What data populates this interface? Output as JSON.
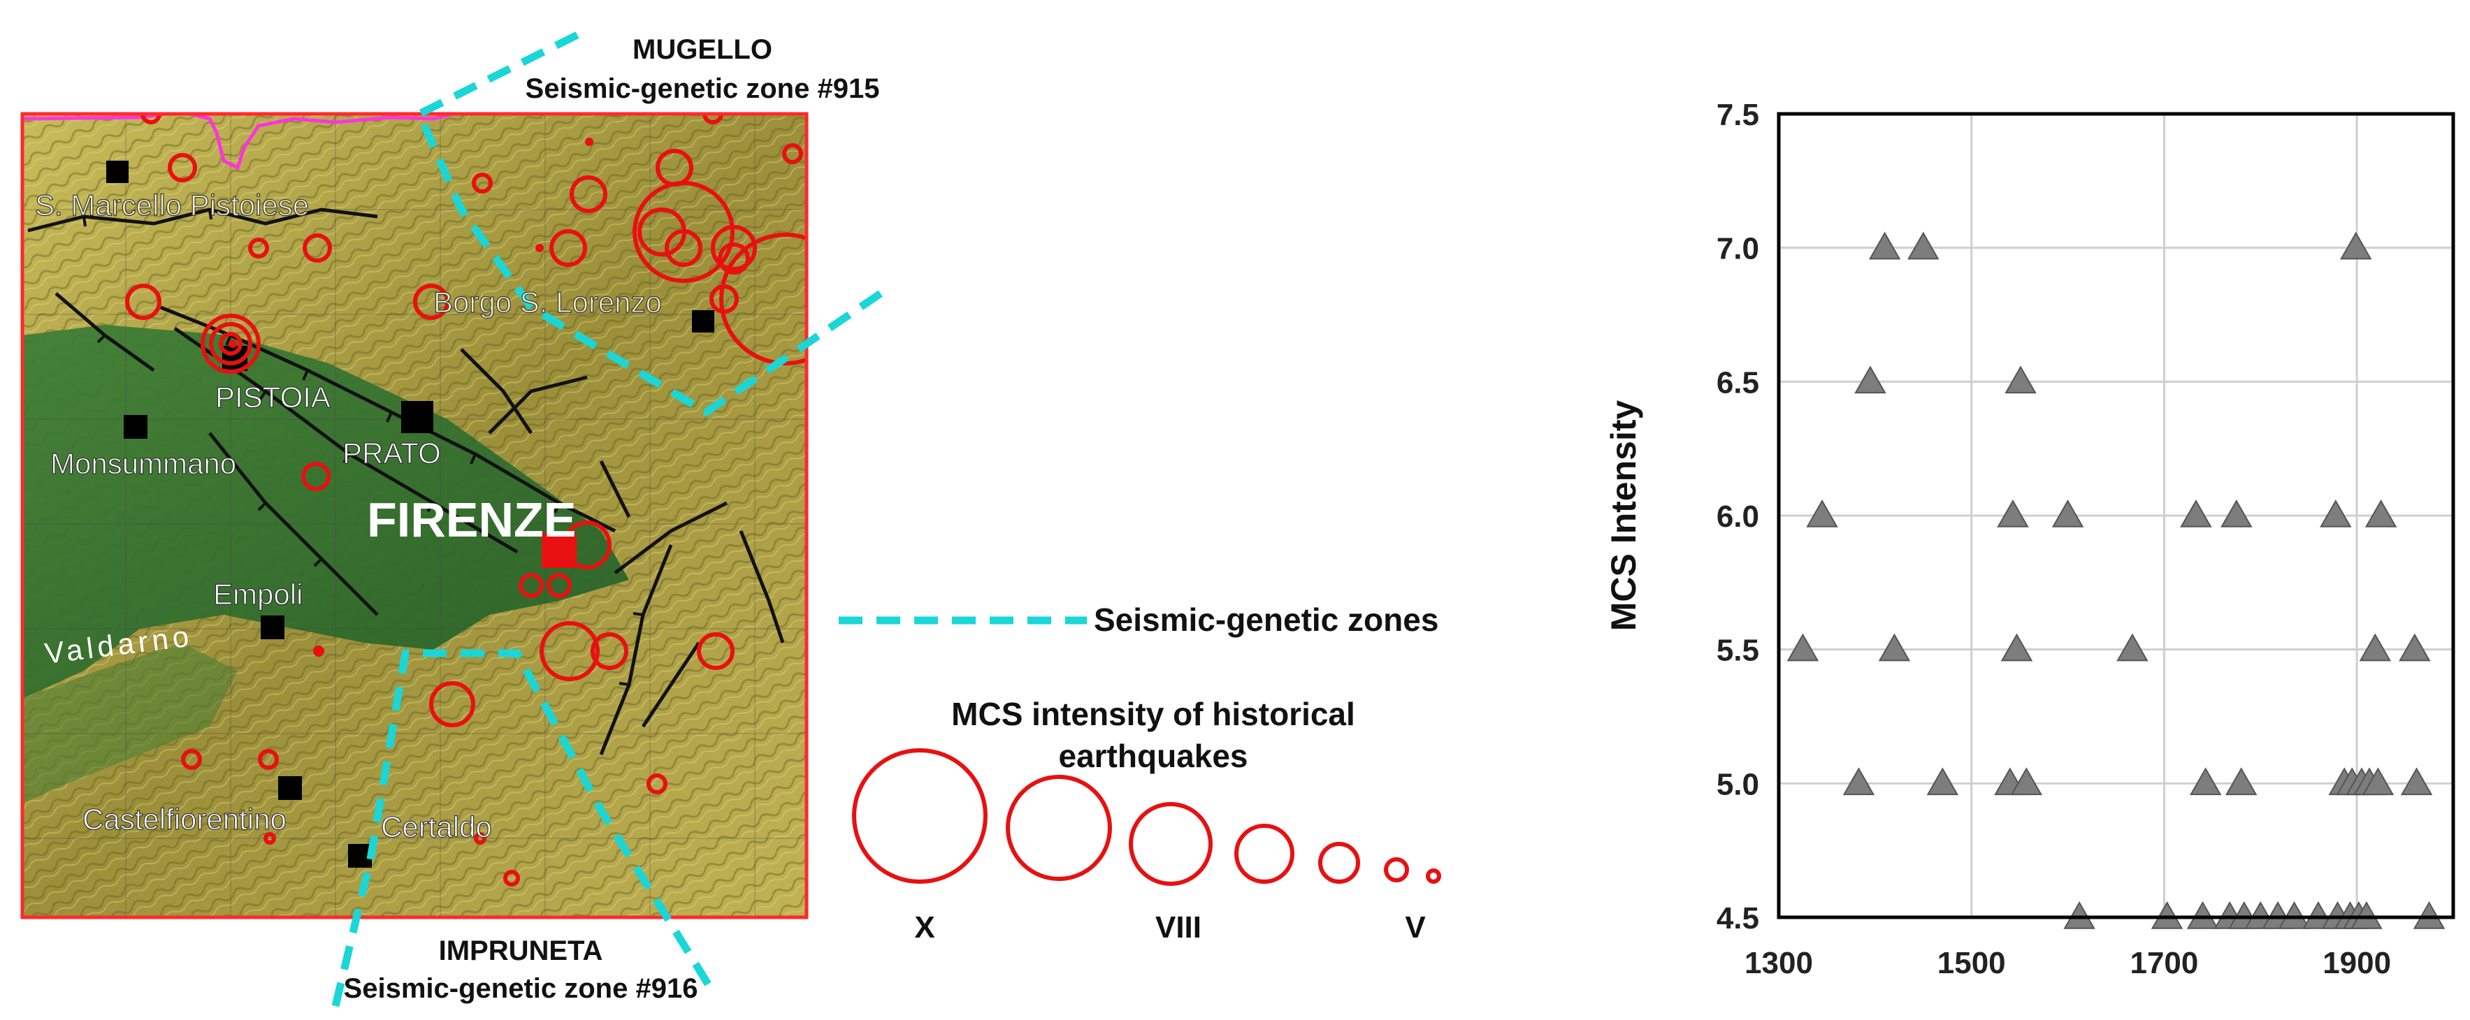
{
  "map": {
    "zone_labels": {
      "mugello_name": "MUGELLO",
      "mugello_zone": "Seismic-genetic zone #915",
      "impruneta_name": "IMPRUNETA",
      "impruneta_zone": "Seismic-genetic zone #916"
    },
    "places": {
      "s_marcello": "S. Marcello Pistoiese",
      "borgo": "Borgo S. Lorenzo",
      "pistoia": "PISTOIA",
      "prato": "PRATO",
      "monsummano": "Monsummano",
      "firenze": "FIRENZE",
      "empoli": "Empoli",
      "valdarno": "Valdarno",
      "castelfiorentino": "Castelfiorentino",
      "certaldo": "Certaldo"
    },
    "colors": {
      "earthquake": "#e81010",
      "zone": "#1ad6d6",
      "frame": "#ff2a2a",
      "boundary": "#ff33dd",
      "plain": "#2f6f2c",
      "hills": "#b0a244"
    }
  },
  "legend": {
    "zones_label": "Seismic-genetic zones",
    "intensity_title_1": "MCS intensity of historical",
    "intensity_title_2": "earthquakes",
    "scale_labels": [
      "X",
      "VIII",
      "V"
    ]
  },
  "chart_data": {
    "type": "scatter",
    "title": "",
    "xlabel": "",
    "ylabel": "MCS Intensity",
    "xlim": [
      1300,
      2000
    ],
    "ylim": [
      4.5,
      7.5
    ],
    "xticks": [
      "1300",
      "1500",
      "1700",
      "1900"
    ],
    "yticks": [
      "4.5",
      "5.0",
      "5.5",
      "6.0",
      "6.5",
      "7.0",
      "7.5"
    ],
    "grid": true,
    "marker": "triangle",
    "marker_color": "#7d7d7d",
    "points": [
      {
        "x": 1325,
        "y": 5.5
      },
      {
        "x": 1345,
        "y": 6.0
      },
      {
        "x": 1383,
        "y": 5.0
      },
      {
        "x": 1395,
        "y": 6.5
      },
      {
        "x": 1410,
        "y": 7.0
      },
      {
        "x": 1420,
        "y": 5.5
      },
      {
        "x": 1450,
        "y": 7.0
      },
      {
        "x": 1470,
        "y": 5.0
      },
      {
        "x": 1540,
        "y": 5.0
      },
      {
        "x": 1543,
        "y": 6.0
      },
      {
        "x": 1547,
        "y": 5.5
      },
      {
        "x": 1551,
        "y": 6.5
      },
      {
        "x": 1557,
        "y": 5.0
      },
      {
        "x": 1600,
        "y": 6.0
      },
      {
        "x": 1612,
        "y": 4.5
      },
      {
        "x": 1667,
        "y": 5.5
      },
      {
        "x": 1703,
        "y": 4.5
      },
      {
        "x": 1733,
        "y": 6.0
      },
      {
        "x": 1740,
        "y": 4.5
      },
      {
        "x": 1743,
        "y": 5.0
      },
      {
        "x": 1768,
        "y": 4.5
      },
      {
        "x": 1775,
        "y": 6.0
      },
      {
        "x": 1780,
        "y": 5.0
      },
      {
        "x": 1783,
        "y": 4.5
      },
      {
        "x": 1800,
        "y": 4.5
      },
      {
        "x": 1818,
        "y": 4.5
      },
      {
        "x": 1835,
        "y": 4.5
      },
      {
        "x": 1860,
        "y": 4.5
      },
      {
        "x": 1878,
        "y": 6.0
      },
      {
        "x": 1880,
        "y": 4.5
      },
      {
        "x": 1887,
        "y": 5.0
      },
      {
        "x": 1893,
        "y": 4.5
      },
      {
        "x": 1895,
        "y": 5.0
      },
      {
        "x": 1899,
        "y": 7.0
      },
      {
        "x": 1902,
        "y": 4.5
      },
      {
        "x": 1905,
        "y": 5.0
      },
      {
        "x": 1910,
        "y": 4.5
      },
      {
        "x": 1913,
        "y": 5.0
      },
      {
        "x": 1919,
        "y": 5.5
      },
      {
        "x": 1922,
        "y": 5.0
      },
      {
        "x": 1925,
        "y": 6.0
      },
      {
        "x": 1960,
        "y": 5.5
      },
      {
        "x": 1962,
        "y": 5.0
      },
      {
        "x": 1975,
        "y": 4.5
      }
    ]
  }
}
